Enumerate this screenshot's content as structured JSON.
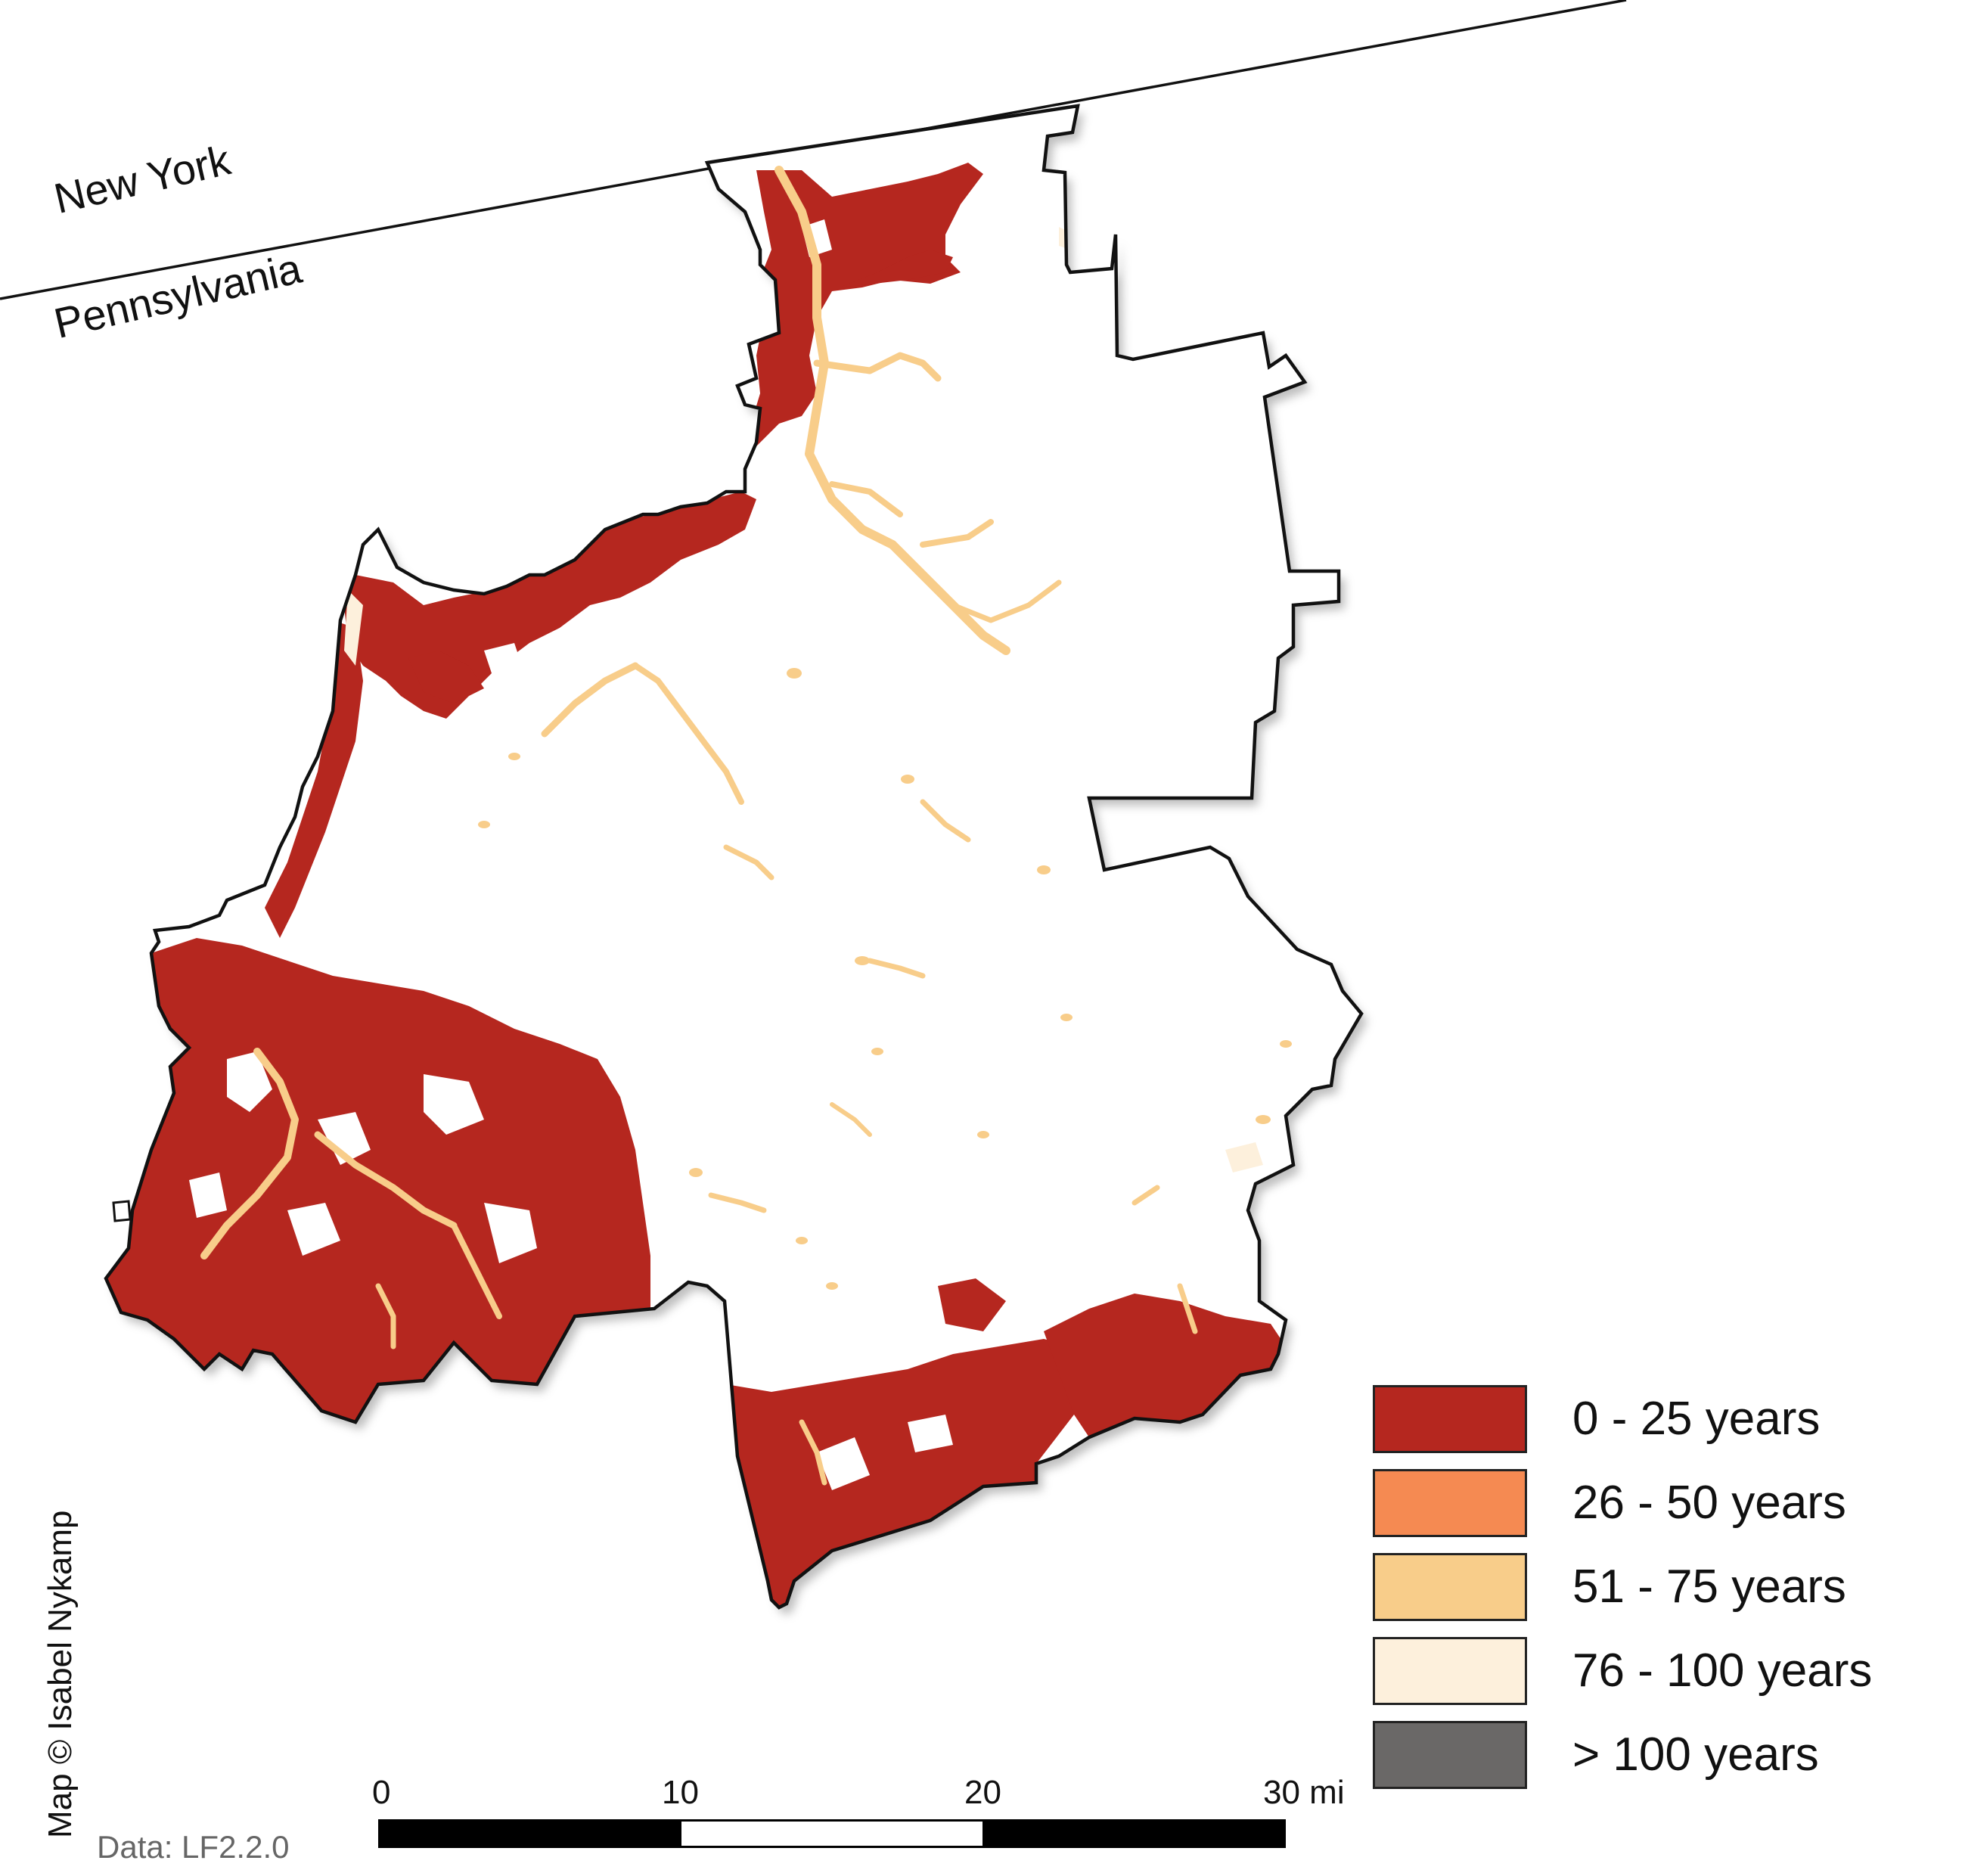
{
  "map": {
    "states": {
      "north": "New York",
      "south": "Pennsylvania"
    },
    "classes": [
      {
        "label": "0 - 25 years",
        "color": "#b5271f"
      },
      {
        "label": "26 - 50 years",
        "color": "#f58a52"
      },
      {
        "label": "51 - 75 years",
        "color": "#f8cd8a"
      },
      {
        "label": "76 - 100 years",
        "color": "#fdf0dc"
      },
      {
        "label": "> 100 years",
        "color": "#6a6867"
      }
    ],
    "scale": {
      "ticks": [
        "0",
        "10",
        "20",
        "30 mi"
      ]
    },
    "credit": "Map © Isabel Nykamp",
    "data_source": "Data: LF2.2.0"
  }
}
